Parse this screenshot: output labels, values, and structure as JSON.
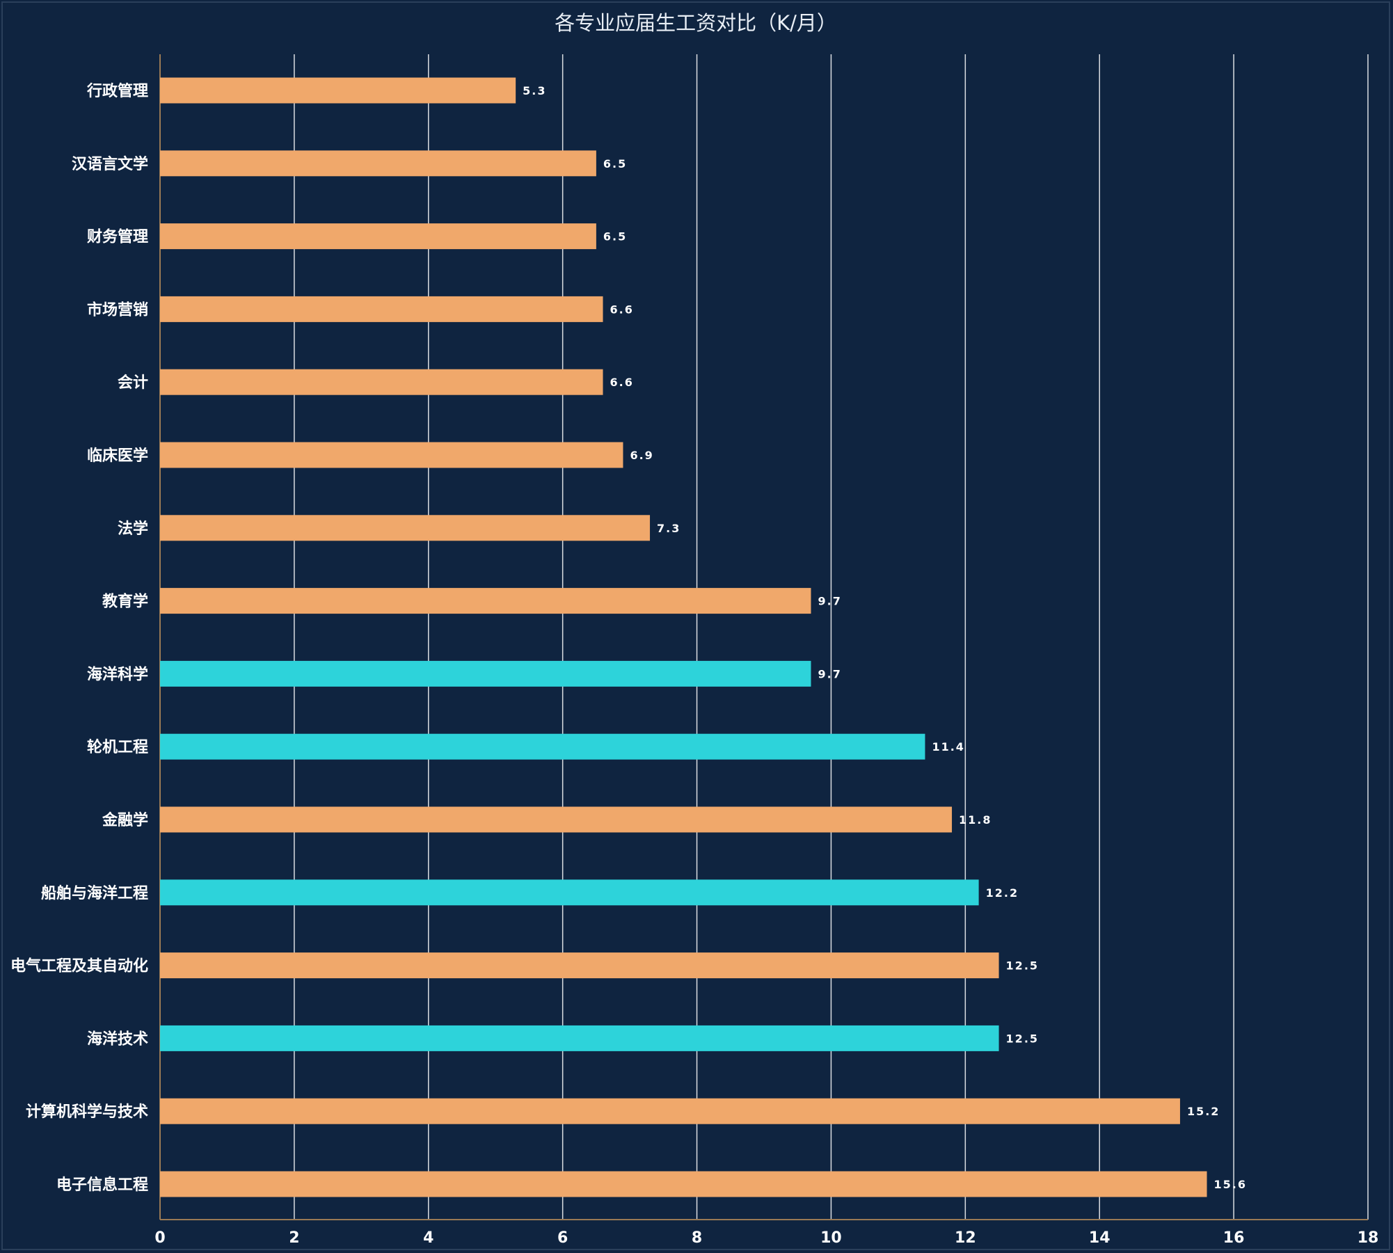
{
  "chart_data": {
    "type": "bar",
    "orientation": "horizontal",
    "title": "各专业应届生工资对比（K/月）",
    "xlabel": "",
    "ylabel": "",
    "xlim": [
      0,
      18
    ],
    "x_ticks": [
      0,
      2,
      4,
      6,
      8,
      10,
      12,
      14,
      16,
      18
    ],
    "grid": "vertical",
    "legend": "none",
    "colors": {
      "default": "#f0a86b",
      "highlight": "#2dd3da"
    },
    "categories": [
      "行政管理",
      "汉语言文学",
      "财务管理",
      "市场营销",
      "会计",
      "临床医学",
      "法学",
      "教育学",
      "海洋科学",
      "轮机工程",
      "金融学",
      "船舶与海洋工程",
      "电气工程及其自动化",
      "海洋技术",
      "计算机科学与技术",
      "电子信息工程"
    ],
    "values": [
      5.3,
      6.5,
      6.5,
      6.6,
      6.6,
      6.9,
      7.3,
      9.7,
      9.7,
      11.4,
      11.8,
      12.2,
      12.5,
      12.5,
      15.2,
      15.6
    ],
    "value_labels": [
      "5.3",
      "6.5",
      "6.5",
      "6.6",
      "6.6",
      "6.9",
      "7.3",
      "9.7",
      "9.7",
      "11.4",
      "11.8",
      "12.2",
      "12.5",
      "12.5",
      "15.2",
      "15.6"
    ],
    "highlighted": [
      "海洋科学",
      "轮机工程",
      "船舶与海洋工程",
      "海洋技术"
    ]
  }
}
